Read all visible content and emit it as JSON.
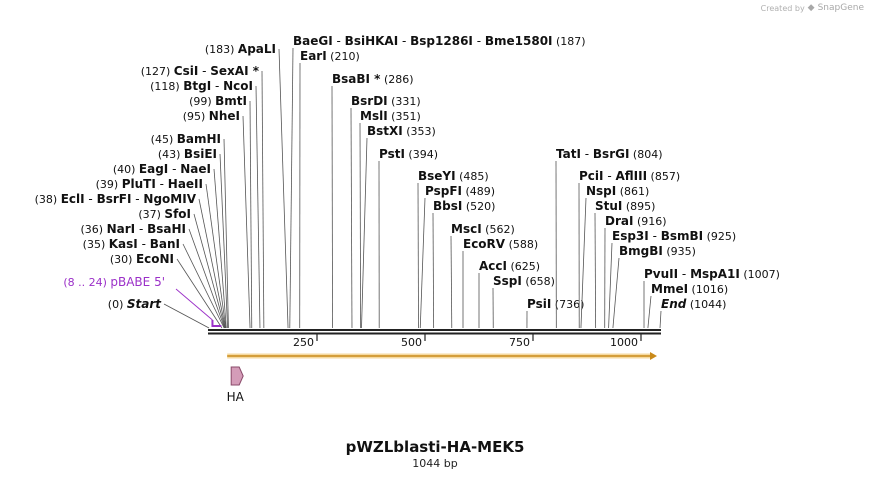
{
  "credit": {
    "prefix": "Created by",
    "brand": "SnapGene"
  },
  "plasmid": {
    "name": "pWZLblasti-HA-MEK5",
    "size_label": "1044 bp",
    "length": 1044
  },
  "axis": {
    "ticks": [
      {
        "pos": 250,
        "label": "250"
      },
      {
        "pos": 500,
        "label": "500"
      },
      {
        "pos": 750,
        "label": "750"
      },
      {
        "pos": 1000,
        "label": "1000"
      }
    ]
  },
  "colors": {
    "line": "#222222",
    "primer": "#9b30c8",
    "orf_fill": "#f5d9a0",
    "orf_stroke": "#c98a1a",
    "feature_fill": "#d49cb8",
    "feature_stroke": "#8a4a6a"
  },
  "features": [
    {
      "name": "HA",
      "start": 12,
      "end": 40
    }
  ],
  "orf": {
    "start": 12,
    "end": 1044
  },
  "primer": {
    "label": "pBABE 5'",
    "range": "(8 .. 24)",
    "start": 8,
    "end": 24
  },
  "sites": [
    {
      "id": "bamhi-group-183",
      "pos": 183,
      "names": [
        "ApaLI"
      ],
      "num": "(183)"
    },
    {
      "id": "baegi",
      "pos": 187,
      "names": [
        "BaeGI",
        "BsiHKAI",
        "Bsp1286I",
        "Bme1580I"
      ],
      "num": "(187)"
    },
    {
      "id": "eari",
      "pos": 210,
      "names": [
        "EarI"
      ],
      "num": "(210)"
    },
    {
      "id": "csii",
      "pos": 127,
      "names": [
        "CsiI",
        "SexAI *"
      ],
      "num": "(127)"
    },
    {
      "id": "btgi",
      "pos": 118,
      "names": [
        "BtgI",
        "NcoI"
      ],
      "num": "(118)"
    },
    {
      "id": "bmti",
      "pos": 99,
      "names": [
        "BmtI"
      ],
      "num": "(99)"
    },
    {
      "id": "nhei",
      "pos": 95,
      "names": [
        "NheI"
      ],
      "num": "(95)"
    },
    {
      "id": "bamhi",
      "pos": 45,
      "names": [
        "BamHI"
      ],
      "num": "(45)"
    },
    {
      "id": "bsiei",
      "pos": 43,
      "names": [
        "BsiEI"
      ],
      "num": "(43)"
    },
    {
      "id": "eagi",
      "pos": 40,
      "names": [
        "EagI",
        "NaeI"
      ],
      "num": "(40)"
    },
    {
      "id": "pluti",
      "pos": 39,
      "names": [
        "PluTI",
        "HaeII"
      ],
      "num": "(39)"
    },
    {
      "id": "ecli",
      "pos": 38,
      "names": [
        "EclI",
        "BsrFI",
        "NgoMIV"
      ],
      "num": "(38)"
    },
    {
      "id": "sfoi",
      "pos": 37,
      "names": [
        "SfoI"
      ],
      "num": "(37)"
    },
    {
      "id": "nari",
      "pos": 36,
      "names": [
        "NarI",
        "BsaHI"
      ],
      "num": "(36)"
    },
    {
      "id": "kasi",
      "pos": 35,
      "names": [
        "KasI",
        "BanI"
      ],
      "num": "(35)"
    },
    {
      "id": "econi",
      "pos": 30,
      "names": [
        "EcoNI"
      ],
      "num": "(30)"
    },
    {
      "id": "start",
      "pos": 0,
      "names": [
        "Start"
      ],
      "num": "(0)",
      "italic": true
    },
    {
      "id": "bsabi",
      "pos": 286,
      "names": [
        "BsaBI *"
      ],
      "num": "(286)"
    },
    {
      "id": "bsrdi",
      "pos": 331,
      "names": [
        "BsrDI"
      ],
      "num": "(331)"
    },
    {
      "id": "msli",
      "pos": 351,
      "names": [
        "MslI"
      ],
      "num": "(351)"
    },
    {
      "id": "bstxi",
      "pos": 353,
      "names": [
        "BstXI"
      ],
      "num": "(353)"
    },
    {
      "id": "psti",
      "pos": 394,
      "names": [
        "PstI"
      ],
      "num": "(394)"
    },
    {
      "id": "bseyi",
      "pos": 485,
      "names": [
        "BseYI"
      ],
      "num": "(485)"
    },
    {
      "id": "pspfi",
      "pos": 489,
      "names": [
        "PspFI"
      ],
      "num": "(489)"
    },
    {
      "id": "bbsi",
      "pos": 520,
      "names": [
        "BbsI"
      ],
      "num": "(520)"
    },
    {
      "id": "msci",
      "pos": 562,
      "names": [
        "MscI"
      ],
      "num": "(562)"
    },
    {
      "id": "ecorv",
      "pos": 588,
      "names": [
        "EcoRV"
      ],
      "num": "(588)"
    },
    {
      "id": "acci",
      "pos": 625,
      "names": [
        "AccI"
      ],
      "num": "(625)"
    },
    {
      "id": "sspi",
      "pos": 658,
      "names": [
        "SspI"
      ],
      "num": "(658)"
    },
    {
      "id": "psii",
      "pos": 736,
      "names": [
        "PsiI"
      ],
      "num": "(736)"
    },
    {
      "id": "tati",
      "pos": 804,
      "names": [
        "TatI",
        "BsrGI"
      ],
      "num": "(804)"
    },
    {
      "id": "pcii",
      "pos": 857,
      "names": [
        "PciI",
        "AflIII"
      ],
      "num": "(857)"
    },
    {
      "id": "nspi",
      "pos": 861,
      "names": [
        "NspI"
      ],
      "num": "(861)"
    },
    {
      "id": "stui",
      "pos": 895,
      "names": [
        "StuI"
      ],
      "num": "(895)"
    },
    {
      "id": "drai",
      "pos": 916,
      "names": [
        "DraI"
      ],
      "num": "(916)"
    },
    {
      "id": "esp3i",
      "pos": 925,
      "names": [
        "Esp3I",
        "BsmBI"
      ],
      "num": "(925)"
    },
    {
      "id": "bmgbi",
      "pos": 935,
      "names": [
        "BmgBI"
      ],
      "num": "(935)"
    },
    {
      "id": "pvuii",
      "pos": 1007,
      "names": [
        "PvuII",
        "MspA1I"
      ],
      "num": "(1007)"
    },
    {
      "id": "mmei",
      "pos": 1016,
      "names": [
        "MmeI"
      ],
      "num": "(1016)"
    },
    {
      "id": "end",
      "pos": 1044,
      "names": [
        "End"
      ],
      "num": "(1044)",
      "italic": true
    }
  ]
}
